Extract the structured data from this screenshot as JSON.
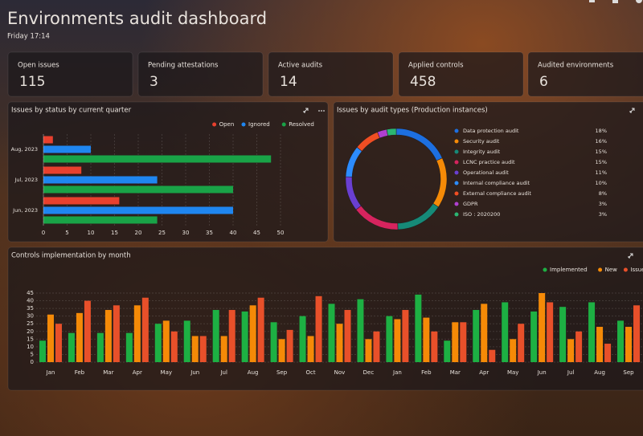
{
  "header": {
    "title": "Environments audit dashboard",
    "subtitle": "Friday 17:14"
  },
  "kpis": [
    {
      "label": "Open issues",
      "value": 115
    },
    {
      "label": "Pending attestations",
      "value": 3
    },
    {
      "label": "Active audits",
      "value": 14
    },
    {
      "label": "Applied controls",
      "value": 458
    },
    {
      "label": "Audited environments",
      "value": 6
    }
  ],
  "chart_data": [
    {
      "type": "bar",
      "horizontal": true,
      "title": "Issues by status by current quarter",
      "categories": [
        "Aug, 2023",
        "Jul, 2023",
        "Jun, 2023"
      ],
      "series": [
        {
          "name": "Open",
          "color": "#e8402e",
          "values": [
            2,
            8,
            16
          ]
        },
        {
          "name": "Ignored",
          "color": "#1f86f0",
          "values": [
            10,
            24,
            40
          ]
        },
        {
          "name": "Resolved",
          "color": "#19a347",
          "values": [
            48,
            40,
            24
          ]
        }
      ],
      "xlim": [
        0,
        50
      ],
      "xticks": [
        0,
        5,
        10,
        15,
        20,
        25,
        30,
        35,
        40,
        45,
        50
      ],
      "grid": true,
      "legend": "top-right"
    },
    {
      "type": "donut",
      "title": "Issues by audit types (Production instances)",
      "categories": [
        "Data protection audit",
        "Security audit",
        "Integrity audit",
        "LCNC practice audit",
        "Operational audit",
        "Internal compliance audit",
        "External compliance audit",
        "GDPR",
        "ISO : 2020200"
      ],
      "values": [
        18,
        16,
        15,
        15,
        11,
        10,
        8,
        3,
        3
      ],
      "value_labels": [
        "18%",
        "16%",
        "15%",
        "15%",
        "11%",
        "10%",
        "8%",
        "3%",
        "3%"
      ],
      "colors": [
        "#1d6fe0",
        "#f58a07",
        "#168a78",
        "#d6245e",
        "#6a3fd1",
        "#2c8cff",
        "#f04e23",
        "#b040d0",
        "#2bb673"
      ]
    },
    {
      "type": "bar",
      "title": "Controls implementation by month",
      "categories": [
        "Jan",
        "Feb",
        "Mar",
        "Apr",
        "May",
        "Jun",
        "Jul",
        "Aug",
        "Sep",
        "Oct",
        "Nov",
        "Dec",
        "Jan",
        "Feb",
        "Mar",
        "Apr",
        "May",
        "Jun",
        "Jul",
        "Aug",
        "Sep"
      ],
      "series": [
        {
          "name": "Implemented",
          "color": "#1db043",
          "values": [
            14,
            19,
            19,
            19,
            25,
            27,
            34,
            33,
            26,
            30,
            38,
            41,
            30,
            44,
            14,
            34,
            39,
            33,
            36,
            39,
            27
          ]
        },
        {
          "name": "New",
          "color": "#f58a07",
          "values": [
            31,
            32,
            34,
            37,
            27,
            17,
            17,
            37,
            15,
            17,
            25,
            15,
            28,
            29,
            26,
            38,
            15,
            45,
            15,
            23,
            23
          ]
        },
        {
          "name": "Issues",
          "color": "#e8502a",
          "values": [
            25,
            40,
            37,
            42,
            20,
            17,
            34,
            42,
            21,
            43,
            34,
            20,
            34,
            20,
            26,
            8,
            25,
            39,
            20,
            12,
            37
          ]
        }
      ],
      "ylim": [
        0,
        45
      ],
      "yticks": [
        0,
        5,
        10,
        15,
        20,
        25,
        30,
        35,
        40,
        45
      ],
      "grid": true,
      "legend": "top-right"
    }
  ]
}
